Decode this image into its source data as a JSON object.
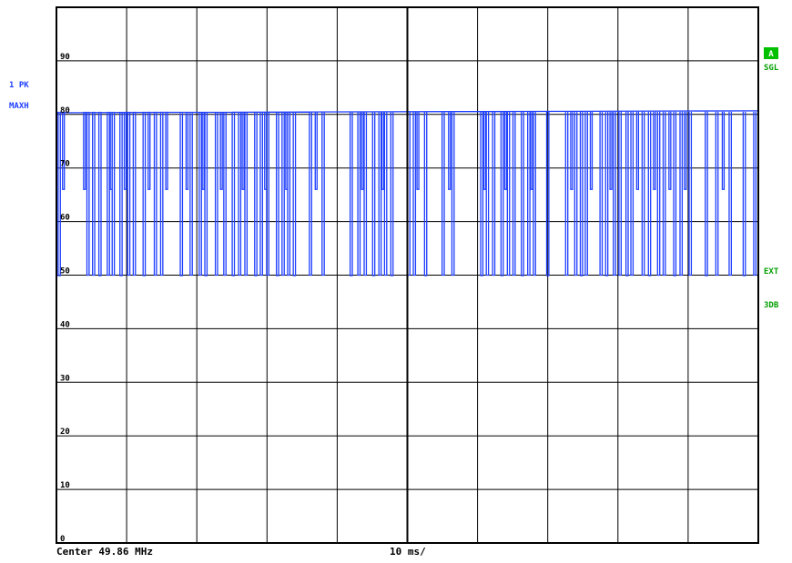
{
  "left_labels": {
    "trace": "1 PK",
    "mode": "MAXH"
  },
  "right_labels": {
    "badge": "A",
    "sweep": "SGL",
    "trigger": "EXT",
    "coupling": "3DB"
  },
  "footer": {
    "center": "Center 49.86 MHz",
    "sweep_time": "10 ms/"
  },
  "chart_data": {
    "type": "line",
    "title": "",
    "xlabel": "",
    "ylabel": "",
    "xlim": [
      0,
      100
    ],
    "ylim": [
      0,
      100
    ],
    "y_ticks": [
      0,
      10,
      20,
      30,
      40,
      50,
      60,
      70,
      80,
      90
    ],
    "y_tick_labels": [
      "0",
      "10",
      "20",
      "30",
      "40",
      "50",
      "60",
      "70",
      "80",
      "90"
    ],
    "grid": true,
    "x_divisions": 10,
    "y_divisions": 10,
    "trace_color": "#1f3fff",
    "grid_color": "#000000",
    "series": [
      {
        "name": "",
        "high_level": 80.5,
        "low_level": 50,
        "mid_level": 66,
        "low_positions": [
          0.4,
          4.5,
          5.3,
          6.2,
          7.4,
          8.1,
          9.2,
          10.3,
          11.1,
          12.5,
          14.1,
          15.0,
          17.8,
          19.2,
          20.5,
          21.3,
          22.8,
          24.0,
          25.2,
          26.1,
          27.0,
          28.4,
          29.2,
          30.1,
          31.5,
          32.3,
          33.1,
          33.9,
          36.2,
          38.0,
          42.0,
          43.1,
          44.0,
          45.2,
          46.1,
          46.9,
          47.8,
          50.2,
          51.0,
          52.6,
          55.1,
          56.5,
          60.6,
          61.4,
          62.3,
          63.5,
          64.4,
          65.2,
          66.4,
          67.3,
          68.1,
          70.0,
          72.7,
          74.0,
          74.8,
          75.5,
          77.6,
          78.4,
          79.5,
          80.3,
          81.3,
          82.0,
          83.6,
          84.5,
          85.8,
          86.6,
          88.1,
          89.0,
          90.3,
          92.6,
          94.1,
          96.0,
          98.0,
          99.5
        ],
        "mid_positions": [
          1.0,
          4.0,
          7.8,
          9.8,
          13.2,
          15.7,
          18.6,
          20.9,
          23.5,
          26.6,
          29.8,
          32.8,
          37.0,
          43.6,
          46.5,
          51.5,
          56.0,
          61.0,
          64.0,
          67.7,
          73.4,
          76.2,
          79.0,
          82.8,
          85.2,
          87.4,
          89.6,
          95.0
        ]
      }
    ]
  }
}
